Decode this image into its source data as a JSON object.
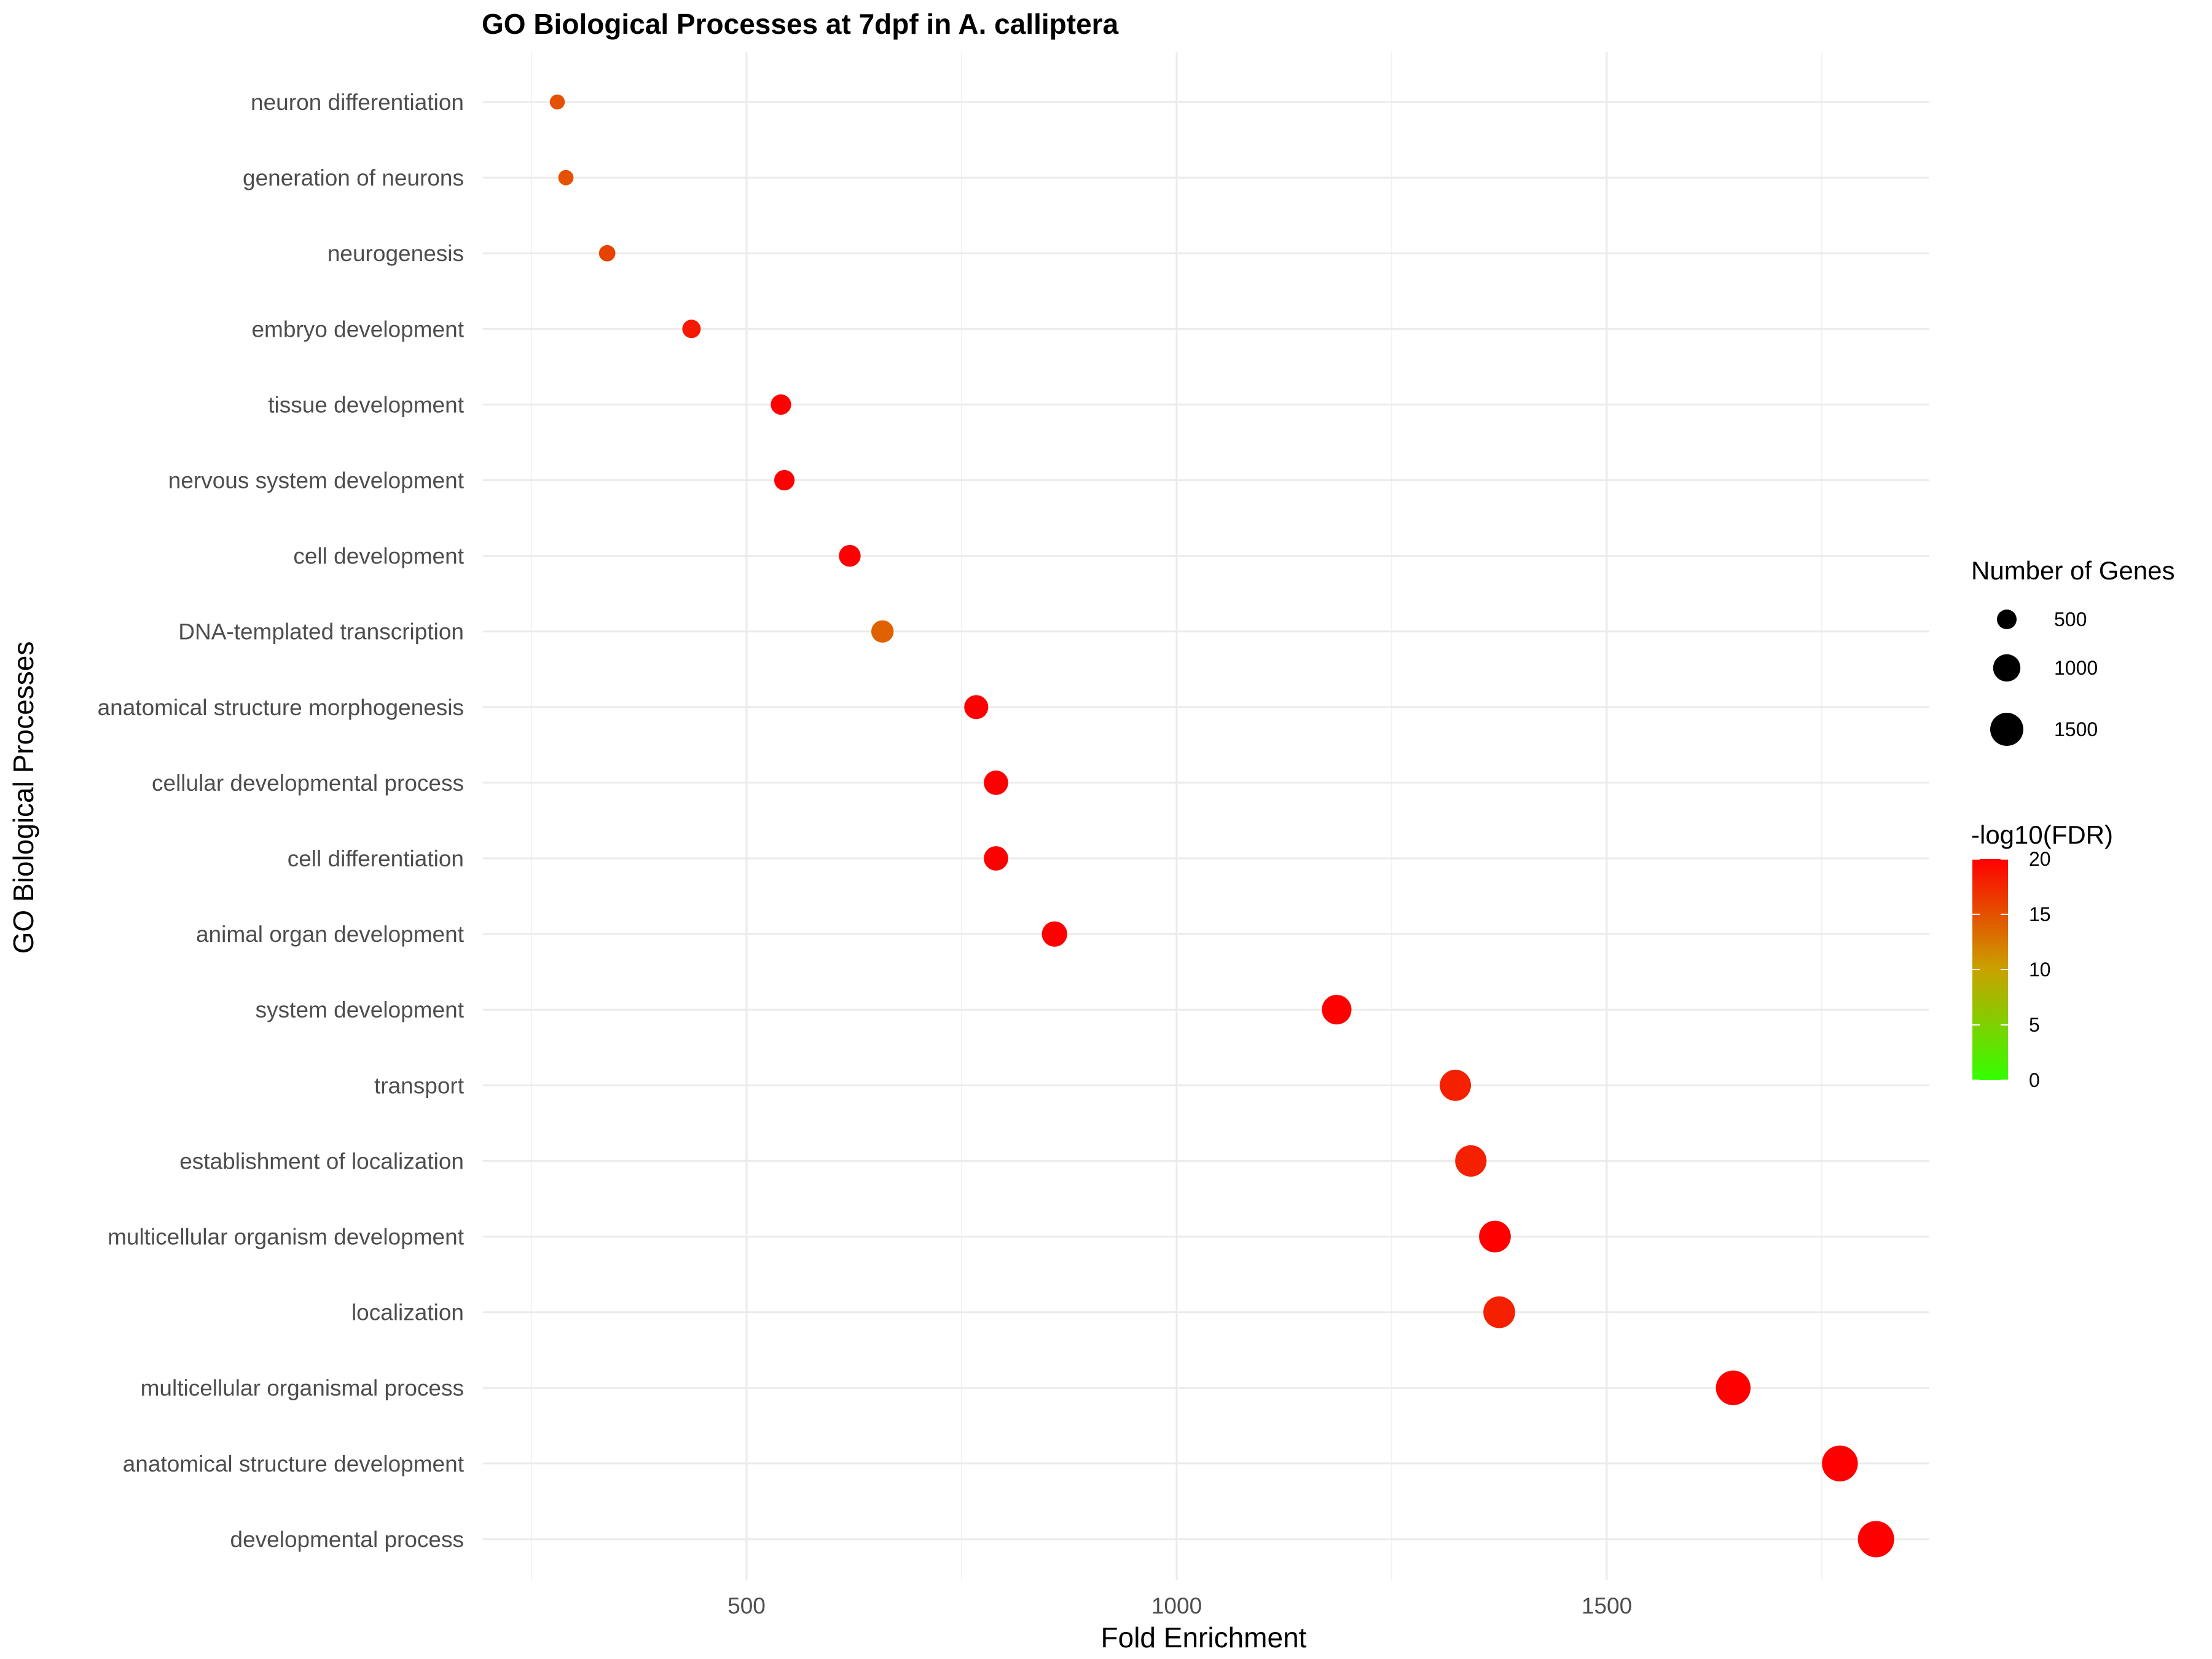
{
  "chart_data": {
    "type": "scatter",
    "title": "GO Biological Processes at 7dpf in A. calliptera",
    "xlabel": "Fold Enrichment",
    "ylabel": "GO Biological Processes",
    "xlim": [
      120,
      1870
    ],
    "x_ticks": [
      500,
      1000,
      1500
    ],
    "grid": true,
    "legend_position": "right",
    "size_legend": {
      "title": "Number of Genes",
      "breaks": [
        500,
        1000,
        1500
      ],
      "labels": [
        "500",
        "1000",
        "1500"
      ]
    },
    "color_legend": {
      "title": "-log10(FDR)",
      "breaks": [
        0,
        5,
        10,
        15,
        20
      ],
      "labels": [
        "0",
        "5",
        "10",
        "15",
        "20"
      ],
      "low_color": "#33ff00",
      "mid_color": "#c9a200",
      "high_color": "#ff0000"
    },
    "categories": [
      "neuron differentiation",
      "generation of neurons",
      "neurogenesis",
      "embryo development",
      "tissue development",
      "nervous system development",
      "cell development",
      "DNA-templated transcription",
      "anatomical structure morphogenesis",
      "cellular developmental process",
      "cell differentiation",
      "animal organ development",
      "system development",
      "transport",
      "establishment of localization",
      "multicellular organism development",
      "localization",
      "multicellular organismal process",
      "anatomical structure development",
      "developmental process"
    ],
    "points": [
      {
        "x": 280,
        "genes": 280,
        "fdr": 15.0
      },
      {
        "x": 290,
        "genes": 290,
        "fdr": 15.0
      },
      {
        "x": 338,
        "genes": 338,
        "fdr": 16.0
      },
      {
        "x": 436,
        "genes": 436,
        "fdr": 18.5
      },
      {
        "x": 540,
        "genes": 540,
        "fdr": 20
      },
      {
        "x": 544,
        "genes": 544,
        "fdr": 20
      },
      {
        "x": 620,
        "genes": 620,
        "fdr": 20
      },
      {
        "x": 658,
        "genes": 658,
        "fdr": 14.0
      },
      {
        "x": 767,
        "genes": 767,
        "fdr": 20
      },
      {
        "x": 790,
        "genes": 790,
        "fdr": 20
      },
      {
        "x": 790,
        "genes": 790,
        "fdr": 20
      },
      {
        "x": 858,
        "genes": 858,
        "fdr": 20
      },
      {
        "x": 1186,
        "genes": 1186,
        "fdr": 20
      },
      {
        "x": 1324,
        "genes": 1324,
        "fdr": 18.0
      },
      {
        "x": 1342,
        "genes": 1342,
        "fdr": 18.0
      },
      {
        "x": 1370,
        "genes": 1370,
        "fdr": 20
      },
      {
        "x": 1375,
        "genes": 1375,
        "fdr": 18.0
      },
      {
        "x": 1647,
        "genes": 1647,
        "fdr": 20
      },
      {
        "x": 1771,
        "genes": 1771,
        "fdr": 20
      },
      {
        "x": 1813,
        "genes": 1813,
        "fdr": 20
      }
    ]
  }
}
